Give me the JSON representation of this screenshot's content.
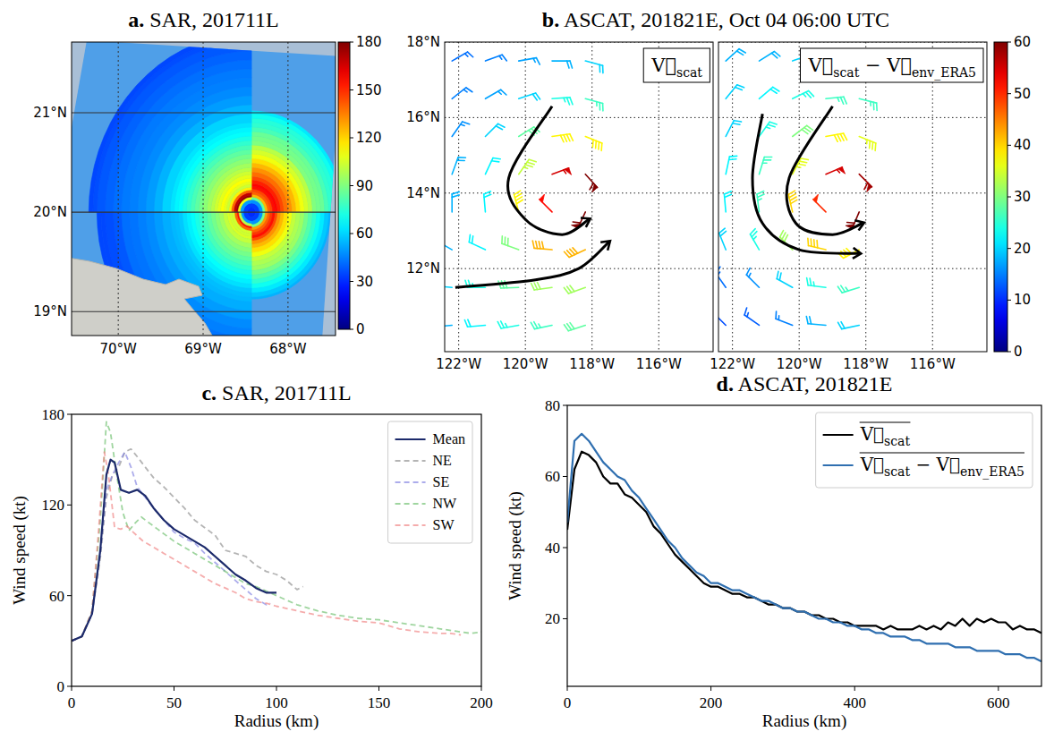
{
  "chart_data": [
    {
      "type": "map",
      "title": "a. SAR, 201711L",
      "xlim": [
        -70.55,
        -67.44
      ],
      "ylim": [
        18.76,
        21.71
      ],
      "xticks": [
        {
          "value": -70,
          "label": "70°W"
        },
        {
          "value": -69,
          "label": "69°W"
        },
        {
          "value": -68,
          "label": "68°W"
        }
      ],
      "yticks": [
        {
          "value": 19,
          "label": "19°N"
        },
        {
          "value": 20,
          "label": "20°N"
        },
        {
          "value": 21,
          "label": "21°N"
        }
      ],
      "grid": true,
      "center": {
        "lon": -68.43,
        "lat": 20.0
      },
      "colorbar": {
        "range": [
          0,
          180
        ],
        "ticks": [
          0,
          30,
          60,
          90,
          120,
          150,
          180
        ]
      }
    },
    {
      "type": "barbs",
      "title": "b. ASCAT, 201821E, Oct 04 06:00 UTC",
      "xlim": [
        -122.42,
        -114.37
      ],
      "ylim": [
        9.8,
        18.0
      ],
      "xticks": [
        {
          "value": -122,
          "label": "122°W"
        },
        {
          "value": -120,
          "label": "120°W"
        },
        {
          "value": -118,
          "label": "118°W"
        },
        {
          "value": -116,
          "label": "116°W"
        }
      ],
      "yticks": [
        {
          "value": 12,
          "label": "12°N"
        },
        {
          "value": 14,
          "label": "14°N"
        },
        {
          "value": 16,
          "label": "16°N"
        },
        {
          "value": 18,
          "label": "18°N"
        }
      ],
      "grid": true,
      "colorbar": {
        "range": [
          0,
          60
        ],
        "ticks": [
          0,
          10,
          20,
          30,
          40,
          50,
          60
        ]
      },
      "lon": [
        -122.2,
        -121.2,
        -120.2,
        -119.2,
        -118.2
      ],
      "lat": [
        17.5,
        16.5,
        15.5,
        14.5,
        13.5,
        12.5,
        11.5,
        10.5
      ],
      "panels": [
        {
          "label": "V⃗scat",
          "speed": [
            [
              14,
              15,
              17,
              18,
              20
            ],
            [
              15,
              17,
              20,
              24,
              26
            ],
            [
              16,
              20,
              28,
              38,
              38
            ],
            [
              18,
              22,
              34,
              55,
              60
            ],
            [
              18,
              22,
              38,
              52,
              62
            ],
            [
              18,
              22,
              30,
              42,
              42
            ],
            [
              20,
              24,
              28,
              32,
              32
            ],
            [
              18,
              22,
              24,
              26,
              28
            ]
          ],
          "direction_to": [
            [
              240,
              250,
              260,
              270,
              285
            ],
            [
              232,
              240,
              252,
              266,
              285
            ],
            [
              215,
              225,
              238,
              262,
              292
            ],
            [
              200,
              205,
              215,
              250,
              318
            ],
            [
              180,
              175,
              165,
              135,
              25
            ],
            [
              120,
              115,
              110,
              95,
              65
            ],
            [
              95,
              90,
              88,
              82,
              70
            ],
            [
              85,
              85,
              80,
              78,
              72
            ]
          ],
          "arrows": [
            [
              [
                -119.2,
                16.3
              ],
              [
                -120.5,
                14.4
              ],
              [
                -120.0,
                13.3
              ],
              [
                -118.9,
                12.9
              ],
              [
                -118.1,
                13.3
              ]
            ],
            [
              [
                -122.1,
                11.5
              ],
              [
                -119.7,
                11.7
              ],
              [
                -118.4,
                12.0
              ],
              [
                -117.5,
                12.7
              ]
            ]
          ]
        },
        {
          "label": "V⃗scat − V⃗env_ERA5",
          "speed": [
            [
              18,
              18,
              20,
              20,
              20
            ],
            [
              20,
              22,
              24,
              26,
              26
            ],
            [
              20,
              24,
              30,
              38,
              36
            ],
            [
              22,
              26,
              36,
              55,
              58
            ],
            [
              22,
              26,
              40,
              50,
              60
            ],
            [
              20,
              24,
              32,
              40,
              38
            ],
            [
              14,
              16,
              20,
              24,
              26
            ],
            [
              12,
              13,
              15,
              18,
              20
            ]
          ],
          "direction_to": [
            [
              228,
              238,
              251,
              265,
              281
            ],
            [
              219,
              230,
              244,
              264,
              284
            ],
            [
              207,
              216,
              233,
              260,
              292
            ],
            [
              192,
              197,
              208,
              247,
              315
            ],
            [
              175,
              173,
              167,
              135,
              23
            ],
            [
              158,
              150,
              135,
              103,
              62
            ],
            [
              145,
              135,
              119,
              97,
              73
            ],
            [
              135,
              125,
              111,
              95,
              78
            ]
          ],
          "arrows": [
            [
              [
                -119.0,
                16.3
              ],
              [
                -120.3,
                14.4
              ],
              [
                -120.1,
                13.2
              ],
              [
                -119.0,
                12.9
              ],
              [
                -118.1,
                13.2
              ]
            ],
            [
              [
                -121.1,
                16.1
              ],
              [
                -121.4,
                14.4
              ],
              [
                -121.1,
                13.2
              ],
              [
                -120.0,
                12.5
              ],
              [
                -118.2,
                12.4
              ]
            ]
          ]
        }
      ]
    },
    {
      "type": "line",
      "title": "c. SAR, 201711L",
      "x_label": "Radius (km)",
      "y_label": "Wind speed (kt)",
      "xlim": [
        0,
        200
      ],
      "ylim": [
        0,
        180
      ],
      "xticks": [
        0,
        50,
        100,
        150,
        200
      ],
      "yticks": [
        0,
        60,
        120,
        180
      ],
      "grid": false,
      "legend": "upper right",
      "series": [
        {
          "name": "Mean",
          "color": "#1c2a6b",
          "line_style": "solid",
          "x": [
            0,
            5,
            10,
            14,
            17,
            19,
            21,
            24,
            28,
            32,
            36,
            40,
            45,
            50,
            55,
            60,
            65,
            70,
            75,
            80,
            85,
            90,
            95,
            100
          ],
          "values": [
            30,
            33,
            48,
            90,
            140,
            150,
            148,
            130,
            128,
            130,
            126,
            118,
            110,
            104,
            100,
            96,
            92,
            86,
            80,
            74,
            70,
            65,
            62,
            62
          ]
        },
        {
          "name": "NE",
          "color": "#8c8c8c",
          "line_style": "dashed",
          "x": [
            0,
            5,
            10,
            14,
            17,
            20,
            23,
            26,
            29,
            32,
            36,
            40,
            45,
            50,
            55,
            60,
            65,
            70,
            75,
            80,
            85,
            90,
            95,
            100,
            105,
            110,
            113
          ],
          "values": [
            30,
            33,
            48,
            85,
            125,
            140,
            145,
            155,
            157,
            152,
            145,
            138,
            132,
            125,
            118,
            110,
            105,
            100,
            90,
            88,
            86,
            80,
            76,
            74,
            70,
            64,
            66
          ]
        },
        {
          "name": "SE",
          "color": "#7f7fe0",
          "line_style": "dashed",
          "x": [
            0,
            5,
            10,
            14,
            17,
            20,
            23,
            26,
            29,
            32,
            36,
            40,
            45,
            50,
            55,
            60,
            65,
            70,
            75,
            80,
            85,
            90,
            95,
            97
          ],
          "values": [
            30,
            33,
            48,
            88,
            130,
            140,
            148,
            155,
            145,
            132,
            125,
            118,
            110,
            102,
            98,
            95,
            88,
            82,
            76,
            70,
            64,
            58,
            54,
            55
          ]
        },
        {
          "name": "NW",
          "color": "#6cbf6c",
          "line_style": "dashed",
          "x": [
            0,
            5,
            10,
            14,
            17,
            19,
            22,
            25,
            28,
            31,
            34,
            38,
            42,
            46,
            50,
            55,
            60,
            65,
            70,
            75,
            80,
            85,
            90,
            95,
            100,
            110,
            120,
            130,
            140,
            150,
            160,
            170,
            180,
            190,
            195,
            200
          ],
          "values": [
            30,
            33,
            50,
            110,
            175,
            168,
            140,
            115,
            103,
            108,
            112,
            108,
            104,
            100,
            96,
            92,
            88,
            84,
            80,
            76,
            72,
            68,
            66,
            63,
            60,
            54,
            50,
            47,
            45,
            44,
            42,
            40,
            38,
            36,
            35,
            36
          ]
        },
        {
          "name": "SW",
          "color": "#ef7f7f",
          "line_style": "dashed",
          "x": [
            0,
            5,
            10,
            13,
            16,
            18,
            21,
            24,
            27,
            30,
            35,
            40,
            45,
            50,
            55,
            60,
            65,
            70,
            75,
            80,
            85,
            90,
            95,
            100,
            110,
            120,
            130,
            140,
            150,
            160,
            170,
            180,
            185,
            190
          ],
          "values": [
            30,
            33,
            50,
            100,
            155,
            140,
            105,
            104,
            106,
            102,
            96,
            92,
            88,
            84,
            80,
            76,
            72,
            68,
            65,
            62,
            58,
            56,
            55,
            53,
            50,
            47,
            45,
            43,
            42,
            38,
            36,
            35,
            35,
            34
          ]
        }
      ]
    },
    {
      "type": "line",
      "title": "d. ASCAT, 201821E",
      "x_label": "Radius (km)",
      "y_label": "Wind speed (kt)",
      "xlim": [
        0,
        660
      ],
      "ylim": [
        1,
        80
      ],
      "xticks": [
        0,
        200,
        400,
        600
      ],
      "yticks": [
        20,
        40,
        60,
        80
      ],
      "grid": false,
      "legend": "upper right",
      "x": [
        0,
        10,
        20,
        30,
        40,
        50,
        60,
        70,
        80,
        90,
        100,
        110,
        120,
        130,
        140,
        150,
        160,
        170,
        180,
        190,
        200,
        210,
        220,
        230,
        240,
        250,
        260,
        270,
        280,
        290,
        300,
        310,
        320,
        330,
        340,
        350,
        360,
        370,
        380,
        390,
        400,
        410,
        420,
        430,
        440,
        450,
        460,
        470,
        480,
        490,
        500,
        510,
        520,
        530,
        540,
        550,
        560,
        570,
        580,
        590,
        600,
        610,
        620,
        630,
        640,
        650,
        660
      ],
      "series": [
        {
          "name": "V⃗scat",
          "color": "#000000",
          "line_style": "solid",
          "values": [
            45,
            62,
            67,
            66,
            64,
            60,
            58,
            58,
            55,
            54,
            52,
            50,
            46,
            44,
            41,
            38,
            36,
            34,
            32,
            30,
            29,
            29,
            28,
            27,
            27,
            26,
            26,
            25,
            24,
            24,
            23,
            23,
            22,
            22,
            21,
            21,
            20,
            20,
            19,
            19,
            18,
            18,
            18,
            18,
            17,
            18,
            17,
            17,
            17,
            18,
            17,
            18,
            17,
            19,
            18,
            20,
            18,
            20,
            19,
            20,
            19,
            19,
            17,
            18,
            17,
            17,
            16
          ]
        },
        {
          "name": "V⃗scat − V⃗env_ERA5",
          "color": "#2f6fb0",
          "line_style": "solid",
          "values": [
            47,
            70,
            72,
            70,
            67,
            64,
            62,
            60,
            59,
            56,
            54,
            51,
            48,
            45,
            42,
            40,
            37,
            35,
            33,
            32,
            30,
            30,
            29,
            28,
            28,
            27,
            26,
            25,
            25,
            24,
            23,
            23,
            22,
            22,
            21,
            20,
            20,
            19,
            19,
            18,
            18,
            17,
            17,
            16,
            16,
            15,
            15,
            15,
            14,
            14,
            13,
            13,
            13,
            13,
            12,
            12,
            12,
            11,
            11,
            11,
            11,
            10,
            10,
            10,
            9,
            9,
            8
          ]
        }
      ]
    }
  ]
}
